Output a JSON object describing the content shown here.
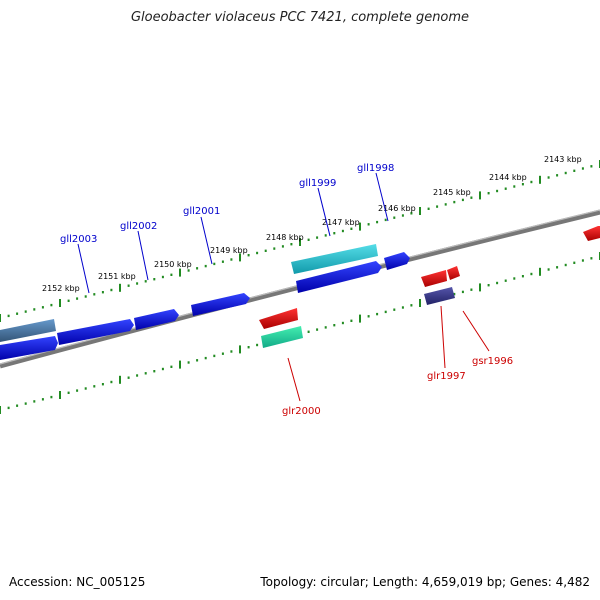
{
  "title": "Gloeobacter violaceus PCC 7421, complete genome",
  "footer": {
    "accession": "Accession: NC_005125",
    "summary": "Topology: circular; Length: 4,659,019 bp; Genes: 4,482"
  },
  "ruler_labels": [
    "2143 kbp",
    "2144 kbp",
    "2145 kbp",
    "2146 kbp",
    "2147 kbp",
    "2148 kbp",
    "2149 kbp",
    "2150 kbp",
    "2151 kbp",
    "2152 kbp"
  ],
  "genes_top": [
    "gll1998",
    "gll1999",
    "gll2001",
    "gll2002",
    "gll2003"
  ],
  "genes_bottom": [
    "glr1997",
    "gsr1996",
    "glr2000"
  ],
  "colors": {
    "forward_gene": "#0000dd",
    "reverse_gene": "#dd0000",
    "backbone": "#808080",
    "tick": "#228b22",
    "label_top": "#0000cc",
    "label_bottom": "#cc0000",
    "cyan_gene": "#22bbcc",
    "teal_gene": "#22cc99",
    "navy_gene": "#333377",
    "steel_gene": "#4477aa"
  }
}
